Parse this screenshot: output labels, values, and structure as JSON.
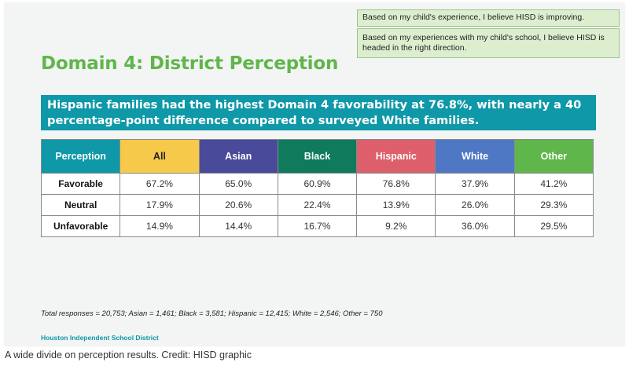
{
  "callouts": [
    "Based on my child's experience, I believe HISD is improving.",
    "Based on my experiences with my child's school, I believe HISD is headed in the right direction."
  ],
  "title": "Domain 4: District Perception",
  "banner": "Hispanic families had the highest Domain 4 favorability at 76.8%, with nearly a 40 percentage-point difference compared to surveyed White families.",
  "table": {
    "headers": [
      {
        "label": "Perception",
        "bg": "#0e98a8",
        "color": "#ffffff"
      },
      {
        "label": "All",
        "bg": "#f6c94a",
        "color": "#222222"
      },
      {
        "label": "Asian",
        "bg": "#4a4a9a",
        "color": "#ffffff"
      },
      {
        "label": "Black",
        "bg": "#0f7a5c",
        "color": "#ffffff"
      },
      {
        "label": "Hispanic",
        "bg": "#dc5f6b",
        "color": "#ffffff"
      },
      {
        "label": "White",
        "bg": "#4e78c4",
        "color": "#ffffff"
      },
      {
        "label": "Other",
        "bg": "#5fb64a",
        "color": "#ffffff"
      }
    ],
    "rows": [
      {
        "label": "Favorable",
        "values": [
          "67.2%",
          "65.0%",
          "60.9%",
          "76.8%",
          "37.9%",
          "41.2%"
        ]
      },
      {
        "label": "Neutral",
        "values": [
          "17.9%",
          "20.6%",
          "22.4%",
          "13.9%",
          "26.0%",
          "29.3%"
        ]
      },
      {
        "label": "Unfavorable",
        "values": [
          "14.9%",
          "14.4%",
          "16.7%",
          "9.2%",
          "36.0%",
          "29.5%"
        ]
      }
    ]
  },
  "footnote": "Total responses = 20,753; Asian = 1,461; Black = 3,581; Hispanic = 12,415; White = 2,546; Other = 750",
  "org": "Houston Independent School District",
  "caption": "A wide divide on perception results. Credit: HISD graphic"
}
